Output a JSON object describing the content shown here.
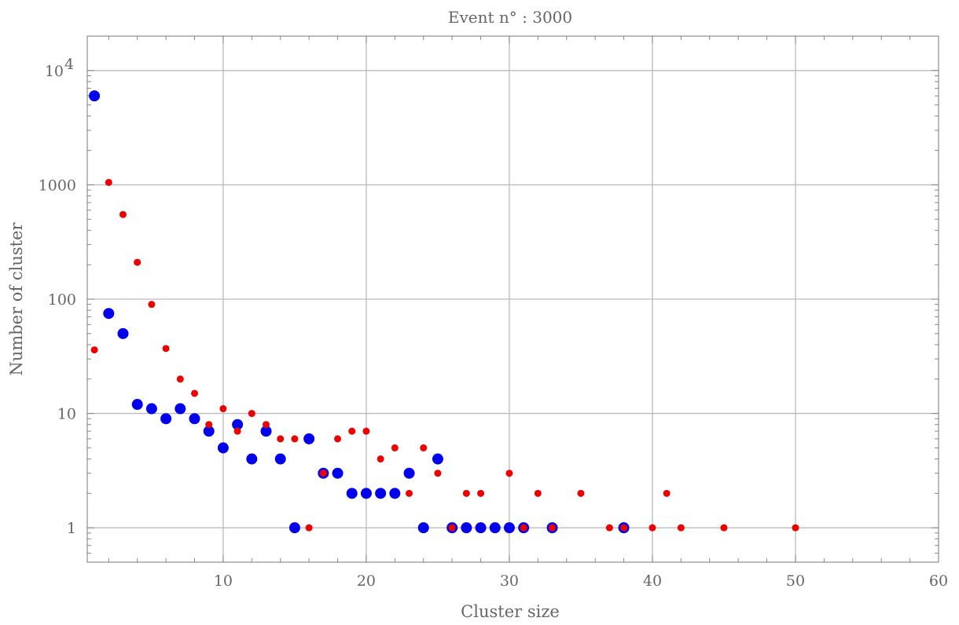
{
  "chart_data": {
    "type": "scatter",
    "title": "Event   n° :  3000",
    "xlabel": "Cluster   size",
    "ylabel": "Number   of   cluster",
    "xlim": [
      0.5,
      60
    ],
    "ylim": [
      0.5,
      20000
    ],
    "yscale": "log",
    "grid": true,
    "x_ticks": [
      {
        "value": 10,
        "label": "10"
      },
      {
        "value": 20,
        "label": "20"
      },
      {
        "value": 30,
        "label": "30"
      },
      {
        "value": 40,
        "label": "40"
      },
      {
        "value": 50,
        "label": "50"
      },
      {
        "value": 60,
        "label": "60"
      }
    ],
    "y_ticks": [
      {
        "value": 1,
        "label": "1"
      },
      {
        "value": 10,
        "label": "10"
      },
      {
        "value": 100,
        "label": "100"
      },
      {
        "value": 1000,
        "label": "1000"
      },
      {
        "value": 10000,
        "label": "10",
        "sup": "4"
      }
    ],
    "series": [
      {
        "color": "#0000ee",
        "marker": "large",
        "points": [
          [
            1,
            6000
          ],
          [
            2,
            75
          ],
          [
            3,
            50
          ],
          [
            4,
            12
          ],
          [
            5,
            11
          ],
          [
            6,
            9
          ],
          [
            7,
            11
          ],
          [
            8,
            9
          ],
          [
            9,
            7
          ],
          [
            10,
            5
          ],
          [
            11,
            8
          ],
          [
            12,
            4
          ],
          [
            13,
            7
          ],
          [
            14,
            4
          ],
          [
            15,
            1
          ],
          [
            16,
            6
          ],
          [
            17,
            3
          ],
          [
            18,
            3
          ],
          [
            19,
            2
          ],
          [
            20,
            2
          ],
          [
            21,
            2
          ],
          [
            22,
            2
          ],
          [
            23,
            3
          ],
          [
            24,
            1
          ],
          [
            25,
            4
          ],
          [
            26,
            1
          ],
          [
            27,
            1
          ],
          [
            28,
            1
          ],
          [
            29,
            1
          ],
          [
            30,
            1
          ],
          [
            31,
            1
          ],
          [
            33,
            1
          ],
          [
            38,
            1
          ]
        ]
      },
      {
        "color": "#ee0000",
        "marker": "small",
        "points": [
          [
            1,
            36
          ],
          [
            2,
            1050
          ],
          [
            3,
            550
          ],
          [
            4,
            210
          ],
          [
            5,
            90
          ],
          [
            6,
            37
          ],
          [
            7,
            20
          ],
          [
            8,
            15
          ],
          [
            9,
            8
          ],
          [
            10,
            11
          ],
          [
            11,
            7
          ],
          [
            12,
            10
          ],
          [
            13,
            8
          ],
          [
            14,
            6
          ],
          [
            15,
            6
          ],
          [
            16,
            1
          ],
          [
            17,
            3
          ],
          [
            18,
            6
          ],
          [
            19,
            7
          ],
          [
            20,
            7
          ],
          [
            21,
            4
          ],
          [
            22,
            5
          ],
          [
            23,
            2
          ],
          [
            24,
            5
          ],
          [
            25,
            3
          ],
          [
            26,
            1
          ],
          [
            27,
            2
          ],
          [
            28,
            2
          ],
          [
            30,
            3
          ],
          [
            31,
            1
          ],
          [
            32,
            2
          ],
          [
            33,
            1
          ],
          [
            35,
            2
          ],
          [
            37,
            1
          ],
          [
            38,
            1
          ],
          [
            40,
            1
          ],
          [
            41,
            2
          ],
          [
            42,
            1
          ],
          [
            45,
            1
          ],
          [
            50,
            1
          ]
        ]
      }
    ]
  }
}
